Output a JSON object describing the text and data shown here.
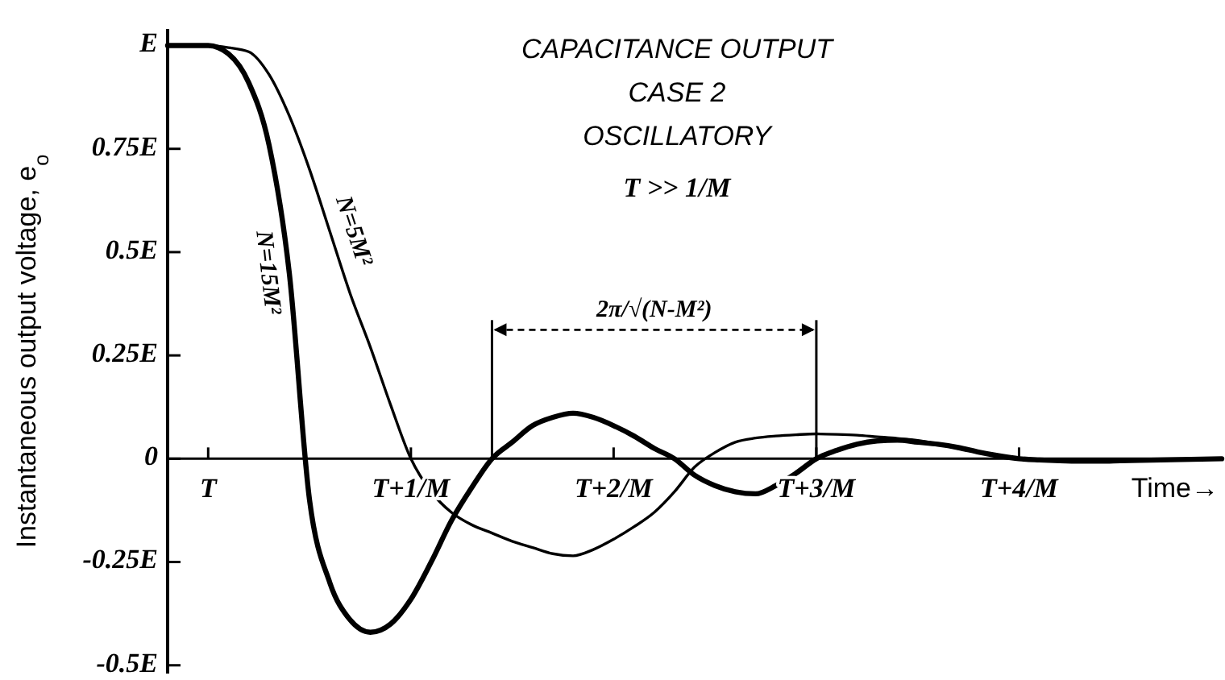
{
  "chart_data": {
    "type": "line",
    "title": "CAPACITANCE OUTPUT",
    "subtitle": "CASE 2",
    "annotations": [
      "OSCILLATORY",
      "T >> 1/M",
      "2π/√(N-M²)"
    ],
    "xlabel": "Time→",
    "ylabel": "Instantaneous output voltage, e$_{o}$",
    "categories": [
      null,
      null,
      "T",
      null,
      null,
      null,
      null,
      null,
      null,
      null,
      null,
      null,
      "T+1/M",
      null,
      null,
      null,
      null,
      null,
      null,
      null,
      null,
      null,
      "T+2/M",
      null,
      null,
      null,
      null,
      null,
      null,
      null,
      null,
      null,
      "T+3/M",
      null,
      null,
      null,
      null,
      null,
      null,
      null,
      null,
      null,
      "T+4/M",
      null,
      null,
      null,
      null,
      null,
      null,
      null,
      null,
      null,
      null
    ],
    "ylim": [
      -0.52,
      1.04
    ],
    "yticks": [
      {
        "value": 1,
        "label": "E"
      },
      {
        "value": 0.75,
        "label": "0.75E"
      },
      {
        "value": 0.5,
        "label": "0.5E"
      },
      {
        "value": 0.25,
        "label": "0.25E"
      },
      0,
      {
        "value": -0.25,
        "label": "-0.25E"
      },
      {
        "value": -0.5,
        "label": "-0.5E"
      }
    ],
    "grid": false,
    "marker": "none",
    "line_style": "solid",
    "series": [
      {
        "name": "N=15M²",
        "color": "#000000",
        "values": [
          1,
          1,
          1,
          0.98,
          0.91,
          0.76,
          0.45,
          -0.1,
          -0.3,
          -0.39,
          -0.42,
          -0.4,
          -0.34,
          -0.25,
          -0.15,
          -0.07,
          0,
          0.04,
          0.08,
          0.1,
          0.11,
          0.1,
          0.08,
          0.055,
          0.025,
          0,
          -0.04,
          -0.065,
          -0.08,
          -0.085,
          -0.065,
          -0.035,
          0,
          0.02,
          0.035,
          0.043,
          0.045,
          0.04,
          0.035,
          0.027,
          0.016,
          0.007,
          0,
          -0.003,
          -0.005,
          -0.006,
          -0.006,
          -0.005,
          -0.004,
          -0.003,
          -0.002,
          -0.001,
          0
        ]
      },
      {
        "name": "N=5M²",
        "color": "#000000",
        "values": [
          1,
          1,
          1,
          0.995,
          0.985,
          0.93,
          0.83,
          0.7,
          0.55,
          0.4,
          0.27,
          0.13,
          0,
          -0.08,
          -0.13,
          -0.16,
          -0.18,
          -0.2,
          -0.215,
          -0.23,
          -0.235,
          -0.22,
          -0.195,
          -0.165,
          -0.13,
          -0.08,
          -0.02,
          0.015,
          0.04,
          0.05,
          0.055,
          0.058,
          0.06,
          0.059,
          0.057,
          0.053,
          0.049,
          0.044,
          0.035,
          0.025,
          0.015,
          0.006,
          0,
          -0.003,
          -0.005,
          -0.005,
          -0.005,
          -0.004,
          -0.004,
          -0.003,
          -0.002,
          -0.001,
          0
        ]
      }
    ]
  }
}
